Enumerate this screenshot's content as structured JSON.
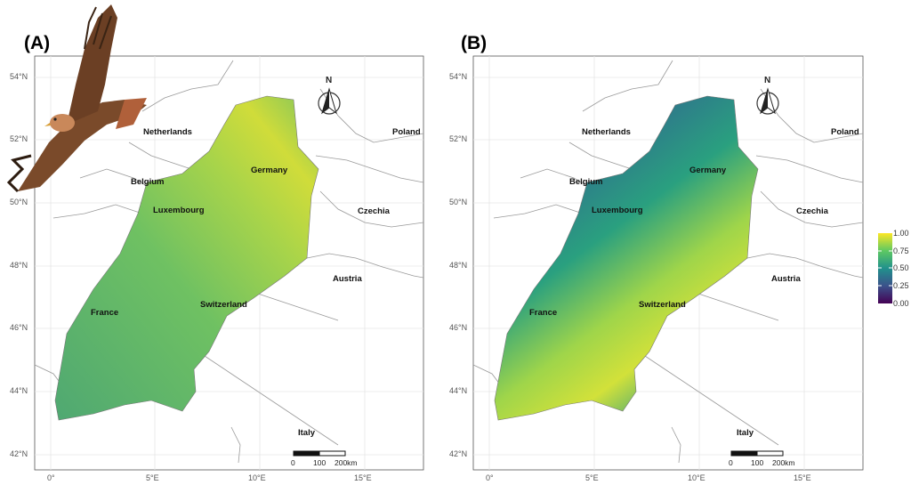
{
  "panels": [
    {
      "label": "(A)",
      "lat_ticks": [
        "54°N",
        "52°N",
        "50°N",
        "48°N",
        "46°N",
        "44°N",
        "42°N"
      ],
      "lon_ticks": [
        "0°",
        "5°E",
        "10°E",
        "15°E"
      ],
      "countries": {
        "netherlands": "Netherlands",
        "belgium": "Belgium",
        "luxembourg": "Luxembourg",
        "germany": "Germany",
        "poland": "Poland",
        "czechia": "Czechia",
        "austria": "Austria",
        "france": "France",
        "switzerland": "Switzerland",
        "italy": "Italy"
      },
      "north": "N",
      "scale": [
        "0",
        "100",
        "200km"
      ]
    },
    {
      "label": "(B)",
      "lat_ticks": [
        "54°N",
        "52°N",
        "50°N",
        "48°N",
        "46°N",
        "44°N",
        "42°N"
      ],
      "lon_ticks": [
        "0°",
        "5°E",
        "10°E",
        "15°E"
      ],
      "countries": {
        "netherlands": "Netherlands",
        "belgium": "Belgium",
        "luxembourg": "Luxembourg",
        "germany": "Germany",
        "poland": "Poland",
        "czechia": "Czechia",
        "austria": "Austria",
        "france": "France",
        "switzerland": "Switzerland",
        "italy": "Italy"
      },
      "north": "N",
      "scale": [
        "0",
        "100",
        "200km"
      ]
    }
  ],
  "legend": {
    "ticks": [
      "1.00",
      "0.75",
      "0.50",
      "0.25",
      "0.00"
    ],
    "colors": [
      "#fde725",
      "#5ec962",
      "#21918c",
      "#3b528b",
      "#440154"
    ]
  }
}
